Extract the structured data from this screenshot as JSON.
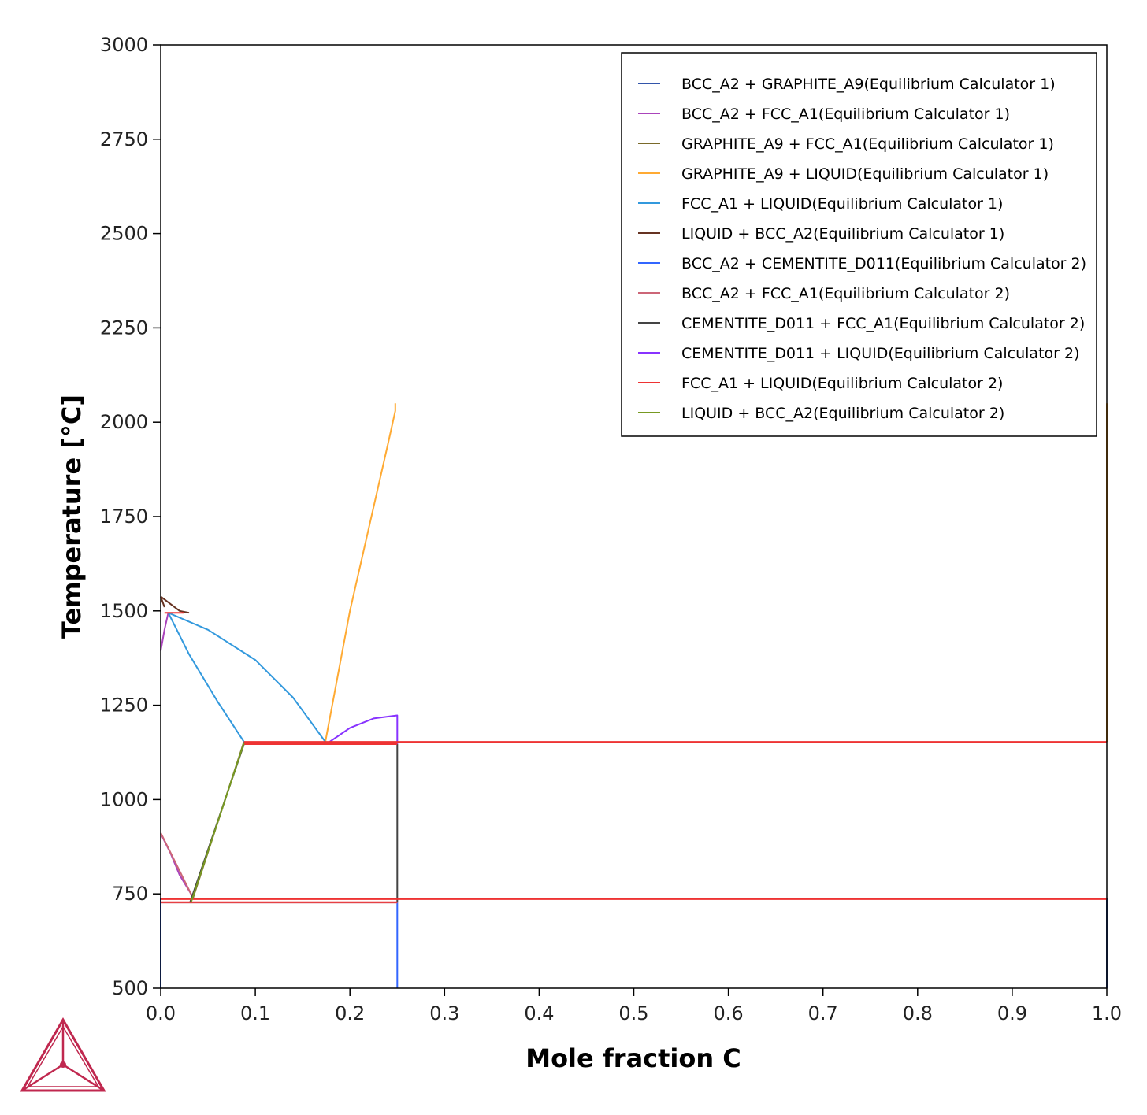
{
  "chart_data": {
    "type": "line",
    "title": "",
    "xlabel": "Mole fraction C",
    "ylabel": "Temperature [°C]",
    "xlim": [
      0,
      1.0
    ],
    "ylim": [
      500,
      3000
    ],
    "x_ticks": [
      "0.0",
      "0.1",
      "0.2",
      "0.3",
      "0.4",
      "0.5",
      "0.6",
      "0.7",
      "0.8",
      "0.9",
      "1.0"
    ],
    "y_ticks": [
      "500",
      "750",
      "1000",
      "1250",
      "1500",
      "1750",
      "2000",
      "2250",
      "2500",
      "2750",
      "3000"
    ],
    "grid": false,
    "legend_position": "top-right",
    "series": [
      {
        "name": "BCC_A2 + GRAPHITE_A9(Equilibrium Calculator 1)",
        "color": "#3355aa",
        "segments": [
          [
            [
              0.0,
              500
            ],
            [
              0.0,
              740
            ]
          ],
          [
            [
              1.0,
              500
            ],
            [
              1.0,
              740
            ]
          ]
        ]
      },
      {
        "name": "BCC_A2 + FCC_A1(Equilibrium Calculator 1)",
        "color": "#aa44bb",
        "segments": [
          [
            [
              0.0,
              910
            ],
            [
              0.01,
              860
            ],
            [
              0.02,
              800
            ],
            [
              0.035,
              738
            ]
          ],
          [
            [
              0.0,
              1394
            ],
            [
              0.004,
              1450
            ],
            [
              0.008,
              1495
            ]
          ]
        ]
      },
      {
        "name": "GRAPHITE_A9 + FCC_A1(Equilibrium Calculator 1)",
        "color": "#7a6a2a",
        "segments": [
          [
            [
              0.034,
              738
            ],
            [
              0.088,
              1153
            ]
          ],
          [
            [
              0.033,
              738
            ],
            [
              1.0,
              738
            ]
          ]
        ]
      },
      {
        "name": "GRAPHITE_A9 + LIQUID(Equilibrium Calculator 1)",
        "color": "#ffaa33",
        "segments": [
          [
            [
              0.174,
              1153
            ],
            [
              0.2,
              1500
            ],
            [
              0.24,
              1940
            ],
            [
              0.248,
              2030
            ],
            [
              0.248,
              2050
            ]
          ],
          [
            [
              1.0,
              1153
            ],
            [
              1.0,
              2050
            ]
          ]
        ]
      },
      {
        "name": "FCC_A1 + LIQUID(Equilibrium Calculator 1)",
        "color": "#3399dd",
        "segments": [
          [
            [
              0.008,
              1495
            ],
            [
              0.03,
              1385
            ],
            [
              0.06,
              1260
            ],
            [
              0.088,
              1153
            ]
          ],
          [
            [
              0.008,
              1495
            ],
            [
              0.05,
              1450
            ],
            [
              0.1,
              1370
            ],
            [
              0.14,
              1270
            ],
            [
              0.174,
              1153
            ]
          ]
        ]
      },
      {
        "name": "LIQUID + BCC_A2(Equilibrium Calculator 1)",
        "color": "#663322",
        "segments": [
          [
            [
              0.0,
              1538
            ],
            [
              0.02,
              1500
            ],
            [
              0.03,
              1495
            ]
          ],
          [
            [
              0.0,
              1538
            ],
            [
              0.004,
              1510
            ]
          ]
        ]
      },
      {
        "name": "BCC_A2 + CEMENTITE_D011(Equilibrium Calculator 2)",
        "color": "#3366ff",
        "segments": [
          [
            [
              0.25,
              500
            ],
            [
              0.25,
              727
            ]
          ],
          [
            [
              0.0,
              500
            ],
            [
              0.0,
              727
            ]
          ]
        ]
      },
      {
        "name": "BCC_A2 + FCC_A1(Equilibrium Calculator 2)",
        "color": "#cc6677",
        "segments": [
          [
            [
              0.0,
              727
            ],
            [
              0.25,
              727
            ]
          ],
          [
            [
              0.0,
              912
            ],
            [
              0.034,
              740
            ]
          ]
        ]
      },
      {
        "name": "CEMENTITE_D011 + FCC_A1(Equilibrium Calculator 2)",
        "color": "#444444",
        "segments": [
          [
            [
              0.25,
              727
            ],
            [
              0.25,
              1147
            ]
          ],
          [
            [
              0.031,
              727
            ],
            [
              0.088,
              1147
            ]
          ]
        ]
      },
      {
        "name": "CEMENTITE_D011 + LIQUID(Equilibrium Calculator 2)",
        "color": "#8833ff",
        "segments": [
          [
            [
              0.175,
              1147
            ],
            [
              0.2,
              1190
            ],
            [
              0.225,
              1215
            ],
            [
              0.25,
              1223
            ],
            [
              0.25,
              1147
            ]
          ]
        ]
      },
      {
        "name": "FCC_A1 + LIQUID(Equilibrium Calculator 2)",
        "color": "#ee3333",
        "segments": [
          [
            [
              0.088,
              1147
            ],
            [
              0.25,
              1147
            ]
          ],
          [
            [
              0.004,
              1495
            ],
            [
              0.025,
              1495
            ]
          ],
          [
            [
              0.088,
              1153
            ],
            [
              1.0,
              1153
            ]
          ],
          [
            [
              0.0,
              736
            ],
            [
              1.0,
              736
            ]
          ],
          [
            [
              0.0,
              728
            ],
            [
              0.25,
              728
            ]
          ]
        ]
      },
      {
        "name": "LIQUID + BCC_A2(Equilibrium Calculator 2)",
        "color": "#779922",
        "segments": [
          [
            [
              0.032,
              727
            ],
            [
              0.088,
              1150
            ]
          ]
        ]
      }
    ]
  }
}
